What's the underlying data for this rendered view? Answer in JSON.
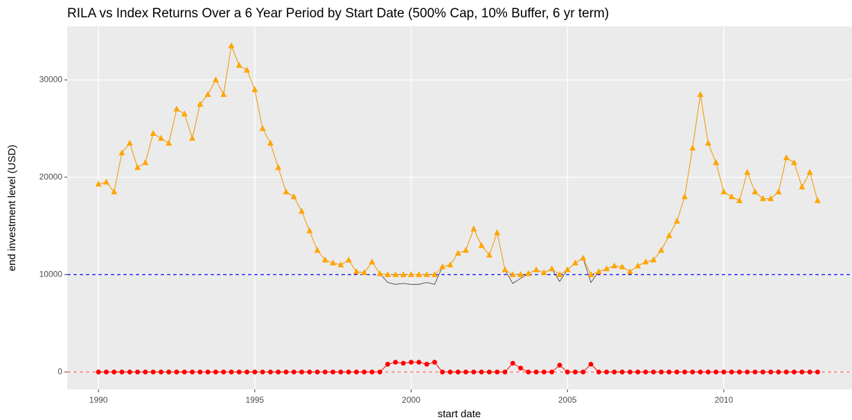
{
  "chart_data": {
    "type": "line",
    "title": "RILA vs Index Returns Over a 6 Year Period by Start Date (500% Cap, 10% Buffer, 6 yr term)",
    "xlabel": "start date",
    "ylabel": "end investment level (USD)",
    "xlim": [
      1989,
      2014.1
    ],
    "ylim": [
      -1800,
      35500
    ],
    "xticks": [
      1990,
      1995,
      2000,
      2005,
      2010
    ],
    "yticks": [
      0,
      10000,
      20000,
      30000
    ],
    "grid": true,
    "hlines": [
      {
        "value": 10000,
        "color": "#0000ff"
      },
      {
        "value": 0,
        "color": "#ff6b6b"
      }
    ],
    "x": [
      1990,
      1990.25,
      1990.5,
      1990.75,
      1991,
      1991.25,
      1991.5,
      1991.75,
      1992,
      1992.25,
      1992.5,
      1992.75,
      1993,
      1993.25,
      1993.5,
      1993.75,
      1994,
      1994.25,
      1994.5,
      1994.75,
      1995,
      1995.25,
      1995.5,
      1995.75,
      1996,
      1996.25,
      1996.5,
      1996.75,
      1997,
      1997.25,
      1997.5,
      1997.75,
      1998,
      1998.25,
      1998.5,
      1998.75,
      1999,
      1999.25,
      1999.5,
      1999.75,
      2000,
      2000.25,
      2000.5,
      2000.75,
      2001,
      2001.25,
      2001.5,
      2001.75,
      2002,
      2002.25,
      2002.5,
      2002.75,
      2003,
      2003.25,
      2003.5,
      2003.75,
      2004,
      2004.25,
      2004.5,
      2004.75,
      2005,
      2005.25,
      2005.5,
      2005.75,
      2006,
      2006.25,
      2006.5,
      2006.75,
      2007,
      2007.25,
      2007.5,
      2007.75,
      2008,
      2008.25,
      2008.5,
      2008.75,
      2009,
      2009.25,
      2009.5,
      2009.75,
      2010,
      2010.25,
      2010.5,
      2010.75,
      2011,
      2011.25,
      2011.5,
      2011.75,
      2012,
      2012.25,
      2012.5,
      2012.75,
      2013
    ],
    "series": [
      {
        "color": "#333333",
        "marker": "none",
        "values": [
          19300,
          19500,
          18500,
          22500,
          23500,
          21000,
          21500,
          24500,
          24000,
          23500,
          27000,
          26500,
          24000,
          27500,
          28500,
          30000,
          28500,
          33500,
          31500,
          31000,
          29000,
          25000,
          23500,
          21000,
          18500,
          18000,
          16500,
          14500,
          12500,
          11500,
          11200,
          11000,
          11500,
          10300,
          10200,
          11300,
          10100,
          9200,
          9000,
          9100,
          9000,
          9000,
          9200,
          9000,
          10800,
          11000,
          12200,
          12500,
          14700,
          13000,
          12000,
          14300,
          10500,
          9100,
          9600,
          10100,
          10500,
          10200,
          10600,
          9300,
          10500,
          11200,
          11700,
          9200,
          10300,
          10600,
          10900,
          10800,
          10300,
          10900,
          11300,
          11500,
          12500,
          14000,
          15500,
          18000,
          23000,
          28500,
          23500,
          21500,
          18500,
          18000,
          17600,
          20500,
          18500,
          17800,
          17800,
          18500,
          22000,
          21500,
          19000,
          20500,
          17600
        ]
      },
      {
        "color": "#ffa500",
        "marker": "triangle",
        "values": [
          19300,
          19500,
          18500,
          22500,
          23500,
          21000,
          21500,
          24500,
          24000,
          23500,
          27000,
          26500,
          24000,
          27500,
          28500,
          30000,
          28500,
          33500,
          31500,
          31000,
          29000,
          25000,
          23500,
          21000,
          18500,
          18000,
          16500,
          14500,
          12500,
          11500,
          11200,
          11000,
          11500,
          10300,
          10200,
          11300,
          10100,
          10000,
          10000,
          10000,
          10000,
          10000,
          10000,
          10000,
          10800,
          11000,
          12200,
          12500,
          14700,
          13000,
          12000,
          14300,
          10500,
          10000,
          10000,
          10100,
          10500,
          10200,
          10600,
          10000,
          10500,
          11200,
          11700,
          10000,
          10300,
          10600,
          10900,
          10800,
          10300,
          10900,
          11300,
          11500,
          12500,
          14000,
          15500,
          18000,
          23000,
          28500,
          23500,
          21500,
          18500,
          18000,
          17600,
          20500,
          18500,
          17800,
          17800,
          18500,
          22000,
          21500,
          19000,
          20500,
          17600
        ]
      },
      {
        "color": "#ff0000",
        "marker": "circle",
        "values": [
          0,
          0,
          0,
          0,
          0,
          0,
          0,
          0,
          0,
          0,
          0,
          0,
          0,
          0,
          0,
          0,
          0,
          0,
          0,
          0,
          0,
          0,
          0,
          0,
          0,
          0,
          0,
          0,
          0,
          0,
          0,
          0,
          0,
          0,
          0,
          0,
          0,
          800,
          1000,
          900,
          1000,
          1000,
          800,
          1000,
          0,
          0,
          0,
          0,
          0,
          0,
          0,
          0,
          0,
          900,
          400,
          0,
          0,
          0,
          0,
          700,
          0,
          0,
          0,
          800,
          0,
          0,
          0,
          0,
          0,
          0,
          0,
          0,
          0,
          0,
          0,
          0,
          0,
          0,
          0,
          0,
          0,
          0,
          0,
          0,
          0,
          0,
          0,
          0,
          0,
          0,
          0,
          0,
          0
        ]
      }
    ]
  }
}
